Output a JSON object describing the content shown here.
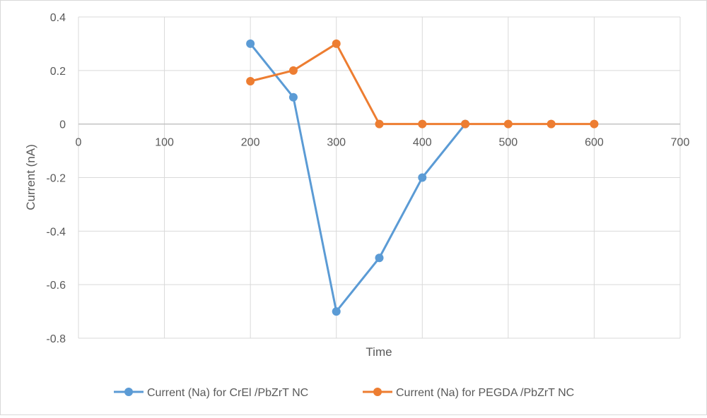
{
  "chart_data": {
    "type": "line",
    "xlabel": "Time",
    "ylabel": "Current (nA)",
    "xlim": [
      0,
      700
    ],
    "ylim": [
      -0.8,
      0.4
    ],
    "x_ticks": [
      0,
      100,
      200,
      300,
      400,
      500,
      600,
      700
    ],
    "y_ticks": [
      0.4,
      0.2,
      0,
      -0.2,
      -0.4,
      -0.6,
      -0.8
    ],
    "grid": true,
    "legend_position": "bottom",
    "series": [
      {
        "name": "Current (Na) for CrEl /PbZrT NC",
        "color": "#5b9bd5",
        "x": [
          200,
          250,
          300,
          350,
          400,
          450
        ],
        "y": [
          0.3,
          0.1,
          -0.7,
          -0.5,
          -0.2,
          0
        ]
      },
      {
        "name": "Current (Na) for PEGDA /PbZrT NC",
        "color": "#ed7d31",
        "x": [
          200,
          250,
          300,
          350,
          400,
          450,
          500,
          550,
          600
        ],
        "y": [
          0.16,
          0.2,
          0.3,
          0,
          0,
          0,
          0,
          0,
          0
        ]
      }
    ]
  }
}
